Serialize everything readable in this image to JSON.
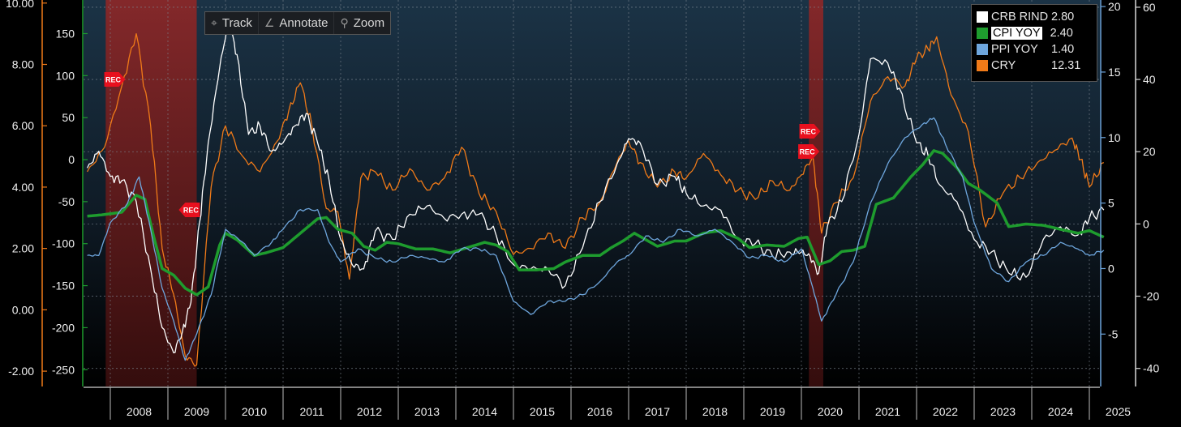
{
  "toolbar": {
    "items": [
      {
        "label": "Track",
        "icon": "crosshair-icon"
      },
      {
        "label": "Annotate",
        "icon": "pencil-icon"
      },
      {
        "label": "Zoom",
        "icon": "magnifier-icon"
      }
    ]
  },
  "legend": {
    "entries": [
      {
        "name": "CRB RIND",
        "value": "2.80",
        "color": "#ffffff"
      },
      {
        "name": "CPI YOY",
        "value": "2.40",
        "color": "#1e9c2e"
      },
      {
        "name": "PPI YOY",
        "value": "1.40",
        "color": "#6ea6dd"
      },
      {
        "name": "CRY",
        "value": "12.31",
        "color": "#f07a18"
      }
    ]
  },
  "recession_markers": [
    "REC",
    "REC",
    "REC",
    "REC"
  ],
  "chart_data": {
    "type": "line",
    "grid": true,
    "x_start": 2007.6,
    "x_end": 2025.5,
    "x_tick_labels": [
      "2008",
      "2009",
      "2010",
      "2011",
      "2012",
      "2013",
      "2014",
      "2015",
      "2016",
      "2017",
      "2018",
      "2019",
      "2020",
      "2021",
      "2022",
      "2023",
      "2024",
      "2025"
    ],
    "recession_bands": [
      [
        2007.92,
        2009.5
      ],
      [
        2020.13,
        2020.38
      ]
    ],
    "axes": {
      "y_left_outer": {
        "range": [
          -2.5,
          10.1
        ],
        "ticks": [
          "-2.00",
          "0.00",
          "2.00",
          "4.00",
          "6.00",
          "8.00",
          "10.00"
        ],
        "color": "#f07a18"
      },
      "y_left_inner": {
        "range": [
          -270,
          190
        ],
        "ticks": [
          "-250",
          "-200",
          "-150",
          "-100",
          "-50",
          "0",
          "50",
          "100",
          "150"
        ],
        "color": "#1e9c2e"
      },
      "y_right_inner": {
        "range": [
          -9,
          20.5
        ],
        "ticks": [
          "-5",
          "0",
          "5",
          "10",
          "15",
          "20"
        ],
        "color": "#6ea6dd"
      },
      "y_right_outer": {
        "range": [
          -45,
          62
        ],
        "ticks": [
          "-40",
          "-20",
          "0",
          "20",
          "40",
          "60"
        ],
        "color": "#d8d8d8"
      }
    },
    "series": [
      {
        "name": "CRY",
        "axis": "y_left_outer",
        "color": "#f07a18",
        "noise": 0.2,
        "x": [
          2007.6,
          2007.9,
          2008.2,
          2008.45,
          2008.7,
          2008.9,
          2009.1,
          2009.3,
          2009.5,
          2009.75,
          2010.0,
          2010.3,
          2010.6,
          2010.9,
          2011.1,
          2011.3,
          2011.5,
          2011.75,
          2011.95,
          2012.15,
          2012.35,
          2012.6,
          2012.9,
          2013.2,
          2013.5,
          2013.8,
          2014.1,
          2014.4,
          2014.7,
          2015.0,
          2015.3,
          2015.6,
          2015.9,
          2016.2,
          2016.5,
          2016.8,
          2017.0,
          2017.2,
          2017.5,
          2017.8,
          2018.0,
          2018.3,
          2018.6,
          2018.9,
          2019.2,
          2019.5,
          2019.8,
          2020.0,
          2020.2,
          2020.35,
          2020.6,
          2020.9,
          2021.2,
          2021.5,
          2021.8,
          2022.0,
          2022.2,
          2022.35,
          2022.6,
          2022.9,
          2023.2,
          2023.5,
          2023.8,
          2024.1,
          2024.4,
          2024.7,
          2024.85,
          2025.0,
          2025.25
        ],
        "y": [
          4.5,
          5.3,
          7.3,
          9.0,
          6.0,
          2.0,
          0.5,
          -1.5,
          -1.8,
          4.0,
          6.0,
          5.0,
          4.5,
          5.5,
          6.5,
          7.4,
          6.0,
          3.3,
          3.2,
          1.0,
          4.3,
          4.5,
          3.9,
          4.6,
          3.9,
          4.3,
          5.3,
          3.8,
          3.2,
          1.8,
          2.0,
          2.5,
          2.0,
          3.0,
          3.5,
          4.8,
          5.5,
          4.8,
          4.0,
          4.5,
          4.3,
          5.1,
          4.4,
          3.9,
          3.6,
          4.2,
          3.9,
          4.4,
          5.0,
          2.5,
          3.5,
          4.3,
          6.8,
          7.6,
          7.3,
          8.2,
          8.5,
          8.9,
          7.0,
          5.8,
          2.7,
          3.8,
          4.3,
          4.8,
          5.2,
          5.6,
          4.9,
          4.0,
          4.8
        ]
      },
      {
        "name": "CRB RIND",
        "axis": "y_left_inner",
        "color": "#ffffff",
        "noise": 8,
        "x": [
          2007.6,
          2007.8,
          2008.0,
          2008.2,
          2008.45,
          2008.7,
          2008.9,
          2009.1,
          2009.25,
          2009.4,
          2009.55,
          2009.7,
          2009.9,
          2010.05,
          2010.2,
          2010.4,
          2010.6,
          2010.8,
          2011.0,
          2011.2,
          2011.4,
          2011.6,
          2011.8,
          2012.0,
          2012.2,
          2012.4,
          2012.6,
          2012.9,
          2013.2,
          2013.5,
          2013.8,
          2014.1,
          2014.4,
          2014.7,
          2015.0,
          2015.3,
          2015.6,
          2015.9,
          2016.2,
          2016.5,
          2016.8,
          2017.0,
          2017.2,
          2017.5,
          2017.8,
          2018.0,
          2018.3,
          2018.6,
          2018.9,
          2019.2,
          2019.5,
          2019.8,
          2020.0,
          2020.15,
          2020.3,
          2020.45,
          2020.7,
          2021.0,
          2021.2,
          2021.5,
          2021.7,
          2022.0,
          2022.2,
          2022.4,
          2022.7,
          2023.0,
          2023.3,
          2023.6,
          2023.9,
          2024.2,
          2024.5,
          2024.8,
          2025.0,
          2025.25
        ],
        "y": [
          -10,
          10,
          -20,
          -25,
          -50,
          -130,
          -200,
          -230,
          -205,
          -170,
          -75,
          20,
          110,
          165,
          125,
          30,
          40,
          10,
          20,
          40,
          55,
          20,
          -25,
          -95,
          -125,
          -130,
          -85,
          -95,
          -65,
          -55,
          -70,
          -65,
          -65,
          -90,
          -125,
          -130,
          -130,
          -150,
          -105,
          -50,
          -5,
          25,
          20,
          -30,
          -20,
          -40,
          -55,
          -60,
          -95,
          -100,
          -115,
          -110,
          -110,
          -115,
          -135,
          -80,
          -50,
          30,
          120,
          115,
          85,
          20,
          5,
          -30,
          -50,
          -95,
          -110,
          -135,
          -140,
          -95,
          -80,
          -90,
          -70,
          -60
        ]
      },
      {
        "name": "CPI YOY",
        "axis": "y_right_inner",
        "color": "#1e9c2e",
        "noise": 0,
        "width": 3.5,
        "x": [
          2007.6,
          2007.85,
          2008.2,
          2008.45,
          2008.6,
          2008.75,
          2008.9,
          2009.1,
          2009.3,
          2009.5,
          2009.7,
          2009.9,
          2010.0,
          2010.2,
          2010.5,
          2010.7,
          2011.0,
          2011.3,
          2011.6,
          2011.75,
          2011.95,
          2012.2,
          2012.4,
          2012.6,
          2012.8,
          2013.0,
          2013.3,
          2013.6,
          2013.9,
          2014.2,
          2014.5,
          2014.7,
          2014.9,
          2015.1,
          2015.4,
          2015.7,
          2015.9,
          2016.2,
          2016.5,
          2016.7,
          2016.9,
          2017.1,
          2017.3,
          2017.5,
          2017.8,
          2018.0,
          2018.3,
          2018.6,
          2018.9,
          2019.1,
          2019.4,
          2019.7,
          2019.95,
          2020.1,
          2020.3,
          2020.5,
          2020.7,
          2020.9,
          2021.1,
          2021.3,
          2021.6,
          2021.9,
          2022.1,
          2022.3,
          2022.45,
          2022.7,
          2022.9,
          2023.1,
          2023.4,
          2023.6,
          2023.9,
          2024.2,
          2024.5,
          2024.8,
          2025.0,
          2025.25
        ],
        "y": [
          4.0,
          4.1,
          4.3,
          5.6,
          5.3,
          2.5,
          0.0,
          -0.5,
          -1.5,
          -2.0,
          -1.4,
          1.8,
          2.7,
          2.2,
          1.0,
          1.2,
          1.6,
          2.7,
          3.8,
          3.9,
          3.0,
          2.7,
          1.7,
          1.4,
          2.0,
          1.9,
          1.5,
          1.5,
          1.2,
          1.6,
          2.0,
          1.8,
          1.3,
          -0.1,
          -0.1,
          0.0,
          0.5,
          1.0,
          1.0,
          1.6,
          2.1,
          2.7,
          2.2,
          1.7,
          2.1,
          2.1,
          2.7,
          2.9,
          2.3,
          1.6,
          1.8,
          1.7,
          2.3,
          2.4,
          0.3,
          0.6,
          1.3,
          1.4,
          1.7,
          4.9,
          5.4,
          7.0,
          7.9,
          9.0,
          8.8,
          7.7,
          6.5,
          6.0,
          5.0,
          3.2,
          3.4,
          3.3,
          3.0,
          2.7,
          2.9,
          2.4
        ]
      },
      {
        "name": "PPI YOY",
        "axis": "y_right_inner",
        "color": "#6ea6dd",
        "noise": 0.15,
        "x": [
          2007.6,
          2007.8,
          2008.0,
          2008.3,
          2008.5,
          2008.7,
          2008.9,
          2009.1,
          2009.3,
          2009.5,
          2009.75,
          2010.0,
          2010.3,
          2010.5,
          2010.8,
          2011.0,
          2011.3,
          2011.6,
          2011.8,
          2012.0,
          2012.3,
          2012.6,
          2012.9,
          2013.2,
          2013.5,
          2013.8,
          2014.1,
          2014.4,
          2014.7,
          2015.0,
          2015.3,
          2015.6,
          2015.9,
          2016.2,
          2016.5,
          2016.8,
          2017.0,
          2017.3,
          2017.6,
          2017.9,
          2018.2,
          2018.5,
          2018.8,
          2019.1,
          2019.4,
          2019.7,
          2020.0,
          2020.2,
          2020.35,
          2020.6,
          2020.9,
          2021.2,
          2021.5,
          2021.8,
          2022.1,
          2022.3,
          2022.5,
          2022.8,
          2023.0,
          2023.3,
          2023.6,
          2023.9,
          2024.2,
          2024.5,
          2024.8,
          2025.0,
          2025.25
        ],
        "y": [
          1.0,
          1.0,
          3.5,
          5.0,
          7.0,
          3.0,
          -1.5,
          -4.0,
          -7.0,
          -5.0,
          -2.0,
          3.0,
          2.0,
          1.0,
          2.0,
          3.0,
          4.5,
          4.5,
          2.0,
          0.5,
          1.5,
          0.8,
          0.5,
          1.0,
          0.8,
          0.5,
          1.5,
          1.5,
          1.0,
          -2.5,
          -3.5,
          -2.5,
          -2.5,
          -2.0,
          -1.0,
          0.5,
          1.0,
          2.5,
          2.0,
          3.0,
          2.5,
          3.0,
          2.0,
          0.8,
          1.0,
          0.5,
          1.5,
          -1.5,
          -4.0,
          -2.0,
          0.5,
          5.0,
          8.0,
          10.0,
          11.0,
          11.5,
          9.5,
          7.0,
          3.5,
          0.0,
          -1.0,
          0.5,
          1.0,
          2.0,
          1.5,
          1.0,
          1.4
        ]
      }
    ]
  }
}
